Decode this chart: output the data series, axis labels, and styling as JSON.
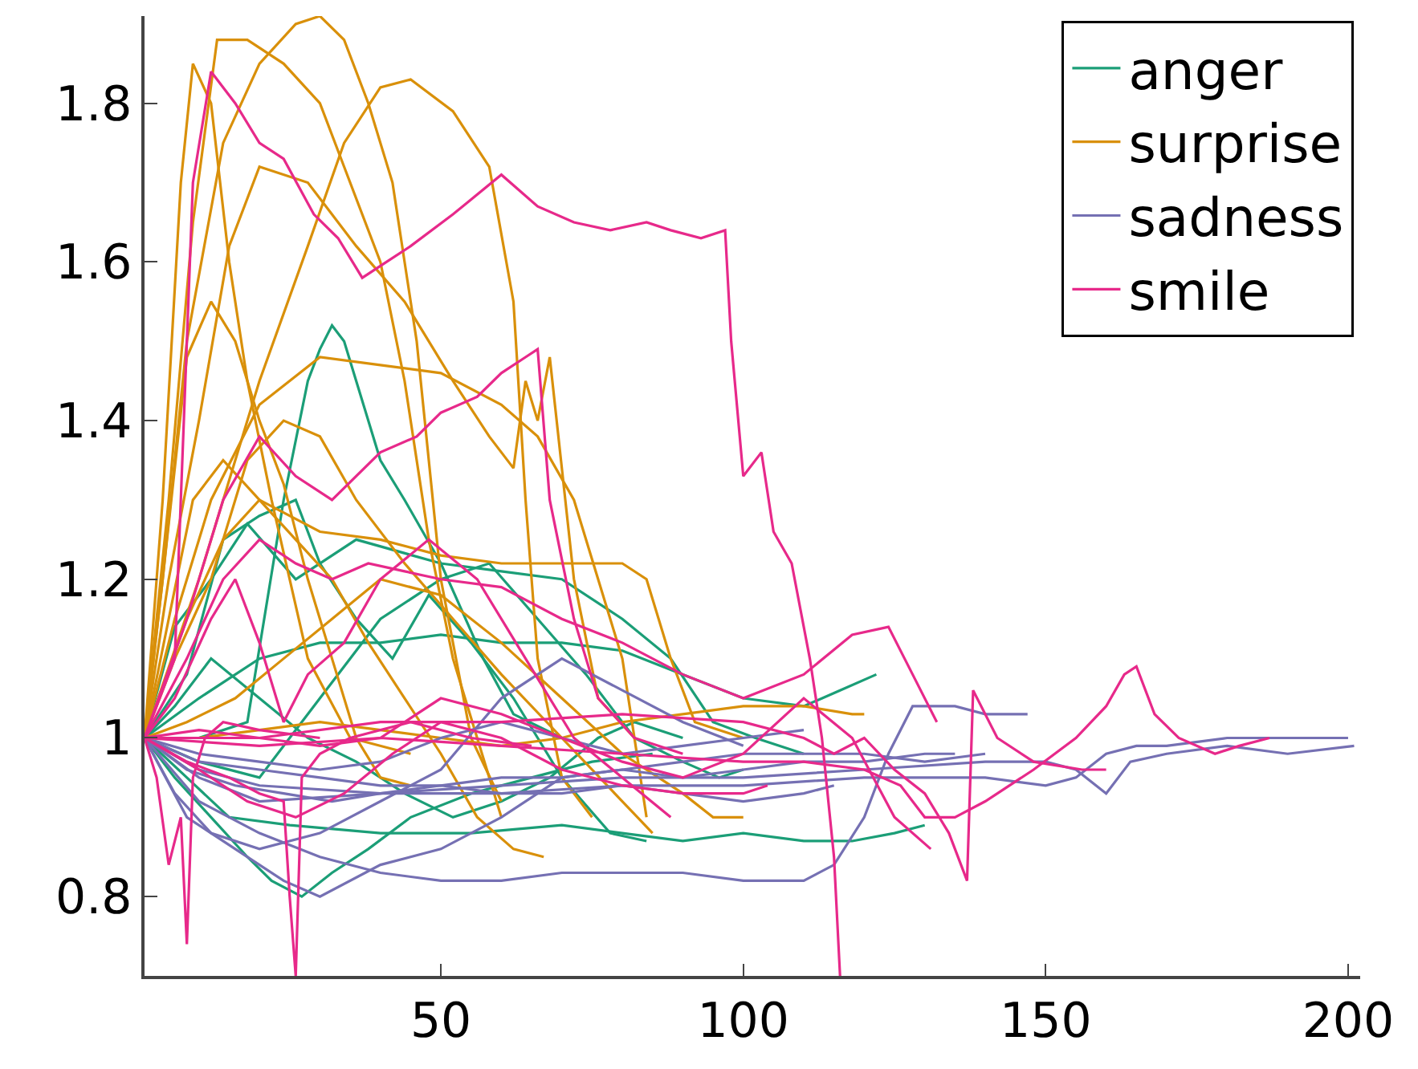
{
  "chart_data": {
    "type": "line",
    "xlim": [
      1,
      202
    ],
    "ylim": [
      0.7,
      1.91
    ],
    "xticks": [
      50,
      100,
      150,
      200
    ],
    "yticks": [
      0.8,
      1,
      1.2,
      1.4,
      1.6,
      1.8
    ],
    "legend": "top right",
    "line_style": "solid",
    "series": [
      {
        "name": "anger",
        "color": "#1b9e77",
        "x": [
          1,
          10,
          18,
          24,
          28,
          30,
          32,
          34,
          36,
          40,
          44,
          50,
          57,
          62,
          70
        ],
        "values": [
          1,
          1.0,
          1.02,
          1.3,
          1.45,
          1.49,
          1.52,
          1.5,
          1.45,
          1.35,
          1.3,
          1.22,
          1.1,
          1.03,
          1.0
        ]
      },
      {
        "color": "#1b9e77",
        "x": [
          1,
          10,
          20,
          30,
          40,
          50,
          60,
          70,
          80,
          90,
          100,
          110,
          116,
          122
        ],
        "values": [
          1,
          1.05,
          1.1,
          1.12,
          1.12,
          1.13,
          1.12,
          1.12,
          1.11,
          1.08,
          1.05,
          1.04,
          1.06,
          1.08
        ]
      },
      {
        "color": "#1b9e77",
        "x": [
          1,
          8,
          15,
          25,
          40,
          55,
          70,
          80,
          90,
          100,
          110,
          118,
          125,
          130
        ],
        "values": [
          1,
          0.95,
          0.9,
          0.89,
          0.88,
          0.88,
          0.89,
          0.88,
          0.87,
          0.88,
          0.87,
          0.87,
          0.88,
          0.89
        ]
      },
      {
        "color": "#1b9e77",
        "x": [
          1,
          6,
          12,
          18,
          22,
          27,
          32,
          38,
          45,
          55,
          65,
          75,
          85
        ],
        "values": [
          1,
          0.95,
          0.9,
          0.85,
          0.82,
          0.8,
          0.83,
          0.86,
          0.9,
          0.93,
          0.95,
          0.97,
          0.98
        ]
      },
      {
        "color": "#1b9e77",
        "x": [
          1,
          6,
          12,
          18,
          26,
          36,
          50,
          60,
          70,
          80,
          88,
          95,
          102,
          110
        ],
        "values": [
          1,
          1.14,
          1.2,
          1.27,
          1.2,
          1.25,
          1.22,
          1.21,
          1.2,
          1.15,
          1.1,
          1.02,
          1.0,
          0.98
        ]
      },
      {
        "color": "#1b9e77",
        "x": [
          1,
          8,
          14,
          20,
          26,
          30,
          36,
          42,
          48,
          55,
          62,
          70,
          78,
          84
        ],
        "values": [
          1,
          1.08,
          1.25,
          1.28,
          1.3,
          1.22,
          1.15,
          1.1,
          1.18,
          1.12,
          1.05,
          0.95,
          0.88,
          0.87
        ]
      },
      {
        "color": "#1b9e77",
        "x": [
          1,
          10,
          20,
          30,
          40,
          50,
          58,
          66,
          74,
          82,
          90,
          96,
          100
        ],
        "values": [
          1,
          0.97,
          0.95,
          1.05,
          1.15,
          1.2,
          1.22,
          1.15,
          1.08,
          1.0,
          0.97,
          0.95,
          0.96
        ]
      },
      {
        "color": "#1b9e77",
        "x": [
          1,
          6,
          12,
          20,
          28,
          36,
          44,
          52,
          60,
          68,
          76,
          82,
          90
        ],
        "values": [
          1,
          1.04,
          1.1,
          1.05,
          1.0,
          0.97,
          0.93,
          0.9,
          0.92,
          0.95,
          1.0,
          1.02,
          1.0
        ]
      },
      {
        "name": "surprise",
        "color": "#d9900a",
        "x": [
          1,
          4,
          8,
          14,
          20,
          26,
          30,
          34,
          38,
          42,
          46,
          50,
          55,
          60
        ],
        "values": [
          1,
          1.2,
          1.5,
          1.75,
          1.85,
          1.9,
          1.91,
          1.88,
          1.8,
          1.7,
          1.5,
          1.2,
          1.0,
          0.92
        ]
      },
      {
        "color": "#d9900a",
        "x": [
          1,
          10,
          20,
          28,
          34,
          40,
          45,
          52,
          58,
          62,
          64,
          66,
          70,
          75
        ],
        "values": [
          1,
          1.2,
          1.45,
          1.62,
          1.75,
          1.82,
          1.83,
          1.79,
          1.72,
          1.55,
          1.3,
          1.1,
          0.95,
          0.9
        ]
      },
      {
        "color": "#d9900a",
        "x": [
          1,
          4,
          7,
          9,
          12,
          15,
          18,
          22,
          28,
          35,
          45
        ],
        "values": [
          1,
          1.3,
          1.7,
          1.85,
          1.8,
          1.6,
          1.45,
          1.3,
          1.1,
          1.0,
          0.98
        ]
      },
      {
        "color": "#d9900a",
        "x": [
          1,
          5,
          9,
          13,
          18,
          24,
          30,
          34,
          40,
          44,
          48,
          52,
          56,
          60
        ],
        "values": [
          1,
          1.3,
          1.65,
          1.88,
          1.88,
          1.85,
          1.8,
          1.72,
          1.6,
          1.45,
          1.25,
          1.1,
          1.0,
          0.9
        ]
      },
      {
        "color": "#d9900a",
        "x": [
          1,
          5,
          10,
          15,
          20,
          28,
          36,
          44,
          52,
          58,
          62,
          64,
          66,
          68,
          72,
          76,
          82
        ],
        "values": [
          1,
          1.2,
          1.4,
          1.62,
          1.72,
          1.7,
          1.62,
          1.55,
          1.45,
          1.38,
          1.34,
          1.45,
          1.4,
          1.48,
          1.2,
          1.05,
          1.0
        ]
      },
      {
        "color": "#d9900a",
        "x": [
          1,
          6,
          12,
          20,
          30,
          40,
          50,
          60,
          66,
          72,
          76,
          80,
          84
        ],
        "values": [
          1,
          1.15,
          1.3,
          1.42,
          1.48,
          1.47,
          1.46,
          1.42,
          1.38,
          1.3,
          1.2,
          1.1,
          0.9
        ]
      },
      {
        "color": "#d9900a",
        "x": [
          1,
          8,
          14,
          20,
          30,
          40,
          50,
          60,
          70,
          80,
          84,
          88,
          92,
          100
        ],
        "values": [
          1,
          1.15,
          1.25,
          1.3,
          1.26,
          1.25,
          1.23,
          1.22,
          1.22,
          1.22,
          1.2,
          1.1,
          1.02,
          1.0
        ]
      },
      {
        "color": "#d9900a",
        "x": [
          1,
          4,
          8,
          12,
          16,
          20,
          24,
          28,
          32,
          36,
          40,
          45
        ],
        "values": [
          1,
          1.2,
          1.48,
          1.55,
          1.5,
          1.4,
          1.32,
          1.2,
          1.1,
          1.0,
          0.95,
          0.94
        ]
      },
      {
        "color": "#d9900a",
        "x": [
          1,
          5,
          9,
          14,
          20,
          26,
          32,
          38,
          44,
          50,
          56,
          62,
          67
        ],
        "values": [
          1,
          1.15,
          1.3,
          1.35,
          1.3,
          1.25,
          1.2,
          1.12,
          1.05,
          0.98,
          0.9,
          0.86,
          0.85
        ]
      },
      {
        "color": "#d9900a",
        "x": [
          1,
          6,
          12,
          18,
          24,
          30,
          36,
          44,
          52,
          60,
          70,
          80,
          85
        ],
        "values": [
          1,
          1.1,
          1.2,
          1.35,
          1.4,
          1.38,
          1.3,
          1.22,
          1.15,
          1.08,
          1.0,
          0.92,
          0.88
        ]
      },
      {
        "color": "#d9900a",
        "x": [
          1,
          8,
          16,
          24,
          32,
          40,
          50,
          60,
          70,
          80,
          90,
          95,
          100
        ],
        "values": [
          1,
          1.02,
          1.05,
          1.1,
          1.15,
          1.2,
          1.18,
          1.12,
          1.05,
          0.98,
          0.93,
          0.9,
          0.9
        ]
      },
      {
        "color": "#d9900a",
        "x": [
          1,
          10,
          20,
          30,
          40,
          50,
          60,
          70,
          80,
          90,
          100,
          110,
          118,
          120
        ],
        "values": [
          1,
          1.0,
          1.01,
          1.02,
          1.01,
          1.0,
          0.99,
          1.0,
          1.02,
          1.03,
          1.04,
          1.04,
          1.03,
          1.03
        ]
      },
      {
        "name": "sadness",
        "color": "#7570b3",
        "x": [
          1,
          10,
          20,
          40,
          60,
          80,
          100,
          120,
          140,
          150,
          155,
          160,
          165,
          170,
          180,
          190,
          200
        ],
        "values": [
          1,
          0.95,
          0.92,
          0.93,
          0.93,
          0.94,
          0.94,
          0.95,
          0.95,
          0.94,
          0.95,
          0.98,
          0.99,
          0.99,
          1.0,
          1.0,
          1.0
        ]
      },
      {
        "color": "#7570b3",
        "x": [
          1,
          10,
          20,
          40,
          60,
          80,
          100,
          120,
          140,
          150,
          155,
          160,
          164,
          170,
          180,
          190,
          201
        ],
        "values": [
          1,
          0.96,
          0.94,
          0.93,
          0.94,
          0.95,
          0.95,
          0.96,
          0.97,
          0.97,
          0.96,
          0.93,
          0.97,
          0.98,
          0.99,
          0.98,
          0.99
        ]
      },
      {
        "color": "#7570b3",
        "x": [
          1,
          10,
          20,
          30,
          40,
          50,
          60,
          70,
          80,
          90,
          100,
          110,
          115,
          120,
          124,
          128,
          135,
          140,
          147
        ],
        "values": [
          1,
          0.92,
          0.88,
          0.85,
          0.83,
          0.82,
          0.82,
          0.83,
          0.83,
          0.83,
          0.82,
          0.82,
          0.84,
          0.9,
          0.98,
          1.04,
          1.04,
          1.03,
          1.03
        ]
      },
      {
        "color": "#7570b3",
        "x": [
          1,
          8,
          16,
          24,
          30,
          40,
          50,
          60,
          70,
          80,
          90,
          100,
          110,
          120,
          130,
          135
        ],
        "values": [
          1,
          0.9,
          0.86,
          0.82,
          0.8,
          0.84,
          0.86,
          0.9,
          0.95,
          0.96,
          0.95,
          0.96,
          0.97,
          0.97,
          0.98,
          0.98
        ]
      },
      {
        "color": "#7570b3",
        "x": [
          1,
          10,
          20,
          30,
          40,
          50,
          60,
          70,
          80,
          90,
          100,
          110,
          120,
          130,
          140
        ],
        "values": [
          1,
          0.97,
          0.96,
          0.95,
          0.94,
          0.94,
          0.95,
          0.95,
          0.96,
          0.97,
          0.98,
          0.98,
          0.98,
          0.97,
          0.98
        ]
      },
      {
        "color": "#7570b3",
        "x": [
          1,
          6,
          12,
          20,
          30,
          40,
          50,
          60,
          70,
          80,
          90,
          100
        ],
        "values": [
          1,
          0.93,
          0.88,
          0.86,
          0.88,
          0.92,
          0.96,
          1.05,
          1.1,
          1.06,
          1.02,
          0.99
        ]
      },
      {
        "color": "#7570b3",
        "x": [
          1,
          10,
          20,
          30,
          40,
          50,
          60,
          70,
          80,
          90,
          100,
          110
        ],
        "values": [
          1,
          0.98,
          0.97,
          0.96,
          0.97,
          1.0,
          1.02,
          1.0,
          0.98,
          0.99,
          1.0,
          1.01
        ]
      },
      {
        "color": "#7570b3",
        "x": [
          1,
          8,
          16,
          24,
          32,
          40,
          50,
          60,
          70,
          80,
          90,
          100,
          110,
          115
        ],
        "values": [
          1,
          0.96,
          0.94,
          0.93,
          0.92,
          0.93,
          0.94,
          0.93,
          0.93,
          0.94,
          0.93,
          0.92,
          0.93,
          0.94
        ]
      },
      {
        "name": "smile",
        "color": "#e7298a",
        "x": [
          1,
          6,
          9,
          12,
          16,
          20,
          24,
          29,
          33,
          37,
          41,
          45,
          52,
          60,
          66,
          72,
          78,
          84,
          88,
          93,
          97,
          98,
          100,
          103,
          105,
          108,
          111,
          113,
          115,
          116
        ],
        "values": [
          1,
          1.1,
          1.7,
          1.84,
          1.8,
          1.75,
          1.73,
          1.66,
          1.63,
          1.58,
          1.6,
          1.62,
          1.66,
          1.71,
          1.67,
          1.65,
          1.64,
          1.65,
          1.64,
          1.63,
          1.64,
          1.5,
          1.33,
          1.36,
          1.26,
          1.22,
          1.1,
          1.0,
          0.85,
          0.7
        ]
      },
      {
        "color": "#e7298a",
        "x": [
          1,
          8,
          14,
          20,
          26,
          32,
          40,
          46,
          50,
          56,
          60,
          64,
          66,
          68,
          72,
          76,
          82,
          90
        ],
        "values": [
          1,
          1.15,
          1.3,
          1.38,
          1.33,
          1.3,
          1.36,
          1.38,
          1.41,
          1.43,
          1.46,
          1.48,
          1.49,
          1.3,
          1.15,
          1.05,
          1.0,
          0.98
        ]
      },
      {
        "color": "#e7298a",
        "x": [
          1,
          20,
          40,
          60,
          80,
          100,
          110,
          120,
          126,
          130,
          135,
          140,
          148,
          155,
          160,
          163,
          165,
          168,
          172,
          178,
          182,
          187
        ],
        "values": [
          1,
          0.99,
          1.0,
          0.99,
          0.98,
          0.97,
          0.97,
          0.96,
          0.94,
          0.9,
          0.9,
          0.92,
          0.96,
          1.0,
          1.04,
          1.08,
          1.09,
          1.03,
          1.0,
          0.98,
          0.99,
          1.0
        ]
      },
      {
        "color": "#e7298a",
        "x": [
          1,
          8,
          15,
          20,
          24,
          25,
          26,
          27,
          30,
          35,
          45,
          55,
          65
        ],
        "values": [
          1,
          0.97,
          0.95,
          0.93,
          0.92,
          0.8,
          0.7,
          0.95,
          0.98,
          1.0,
          1.02,
          1.0,
          0.99
        ]
      },
      {
        "color": "#e7298a",
        "x": [
          1,
          3,
          5,
          7,
          8,
          9,
          11,
          14,
          20,
          30
        ],
        "values": [
          1,
          0.95,
          0.84,
          0.9,
          0.74,
          0.95,
          1.0,
          1.02,
          1.01,
          1.0
        ]
      },
      {
        "color": "#e7298a",
        "x": [
          1,
          20,
          40,
          60,
          80,
          100,
          110,
          115,
          120,
          125,
          130,
          134,
          137,
          138,
          142,
          148,
          156,
          160
        ],
        "values": [
          1,
          1.0,
          1.02,
          1.02,
          1.03,
          1.02,
          1.0,
          0.98,
          1.0,
          0.96,
          0.93,
          0.88,
          0.82,
          1.06,
          1.0,
          0.97,
          0.96,
          0.96
        ]
      },
      {
        "color": "#e7298a",
        "x": [
          1,
          8,
          14,
          20,
          26,
          32,
          38,
          44,
          50,
          60,
          70,
          80,
          90,
          100,
          110,
          118,
          124,
          128,
          132
        ],
        "values": [
          1,
          1.1,
          1.2,
          1.25,
          1.22,
          1.2,
          1.22,
          1.21,
          1.2,
          1.19,
          1.15,
          1.12,
          1.08,
          1.05,
          1.08,
          1.13,
          1.14,
          1.08,
          1.02
        ]
      },
      {
        "color": "#e7298a",
        "x": [
          1,
          6,
          12,
          16,
          20,
          24,
          28,
          34,
          40,
          48,
          56,
          64,
          72,
          80,
          88
        ],
        "values": [
          1,
          1.05,
          1.15,
          1.2,
          1.12,
          1.02,
          1.08,
          1.12,
          1.2,
          1.25,
          1.2,
          1.1,
          1.0,
          0.95,
          0.9
        ]
      },
      {
        "color": "#e7298a",
        "x": [
          1,
          10,
          20,
          30,
          40,
          50,
          60,
          70,
          80,
          90,
          100,
          110,
          118,
          125,
          131
        ],
        "values": [
          1,
          1.01,
          1.0,
          0.99,
          1.0,
          1.05,
          1.03,
          1.0,
          0.97,
          0.95,
          0.98,
          1.05,
          1.0,
          0.9,
          0.86
        ]
      },
      {
        "color": "#e7298a",
        "x": [
          1,
          10,
          18,
          26,
          34,
          42,
          50,
          60,
          70,
          80,
          90,
          100,
          104
        ],
        "values": [
          1,
          0.96,
          0.92,
          0.9,
          0.93,
          0.98,
          1.02,
          1.0,
          0.96,
          0.94,
          0.93,
          0.93,
          0.94
        ]
      }
    ]
  }
}
